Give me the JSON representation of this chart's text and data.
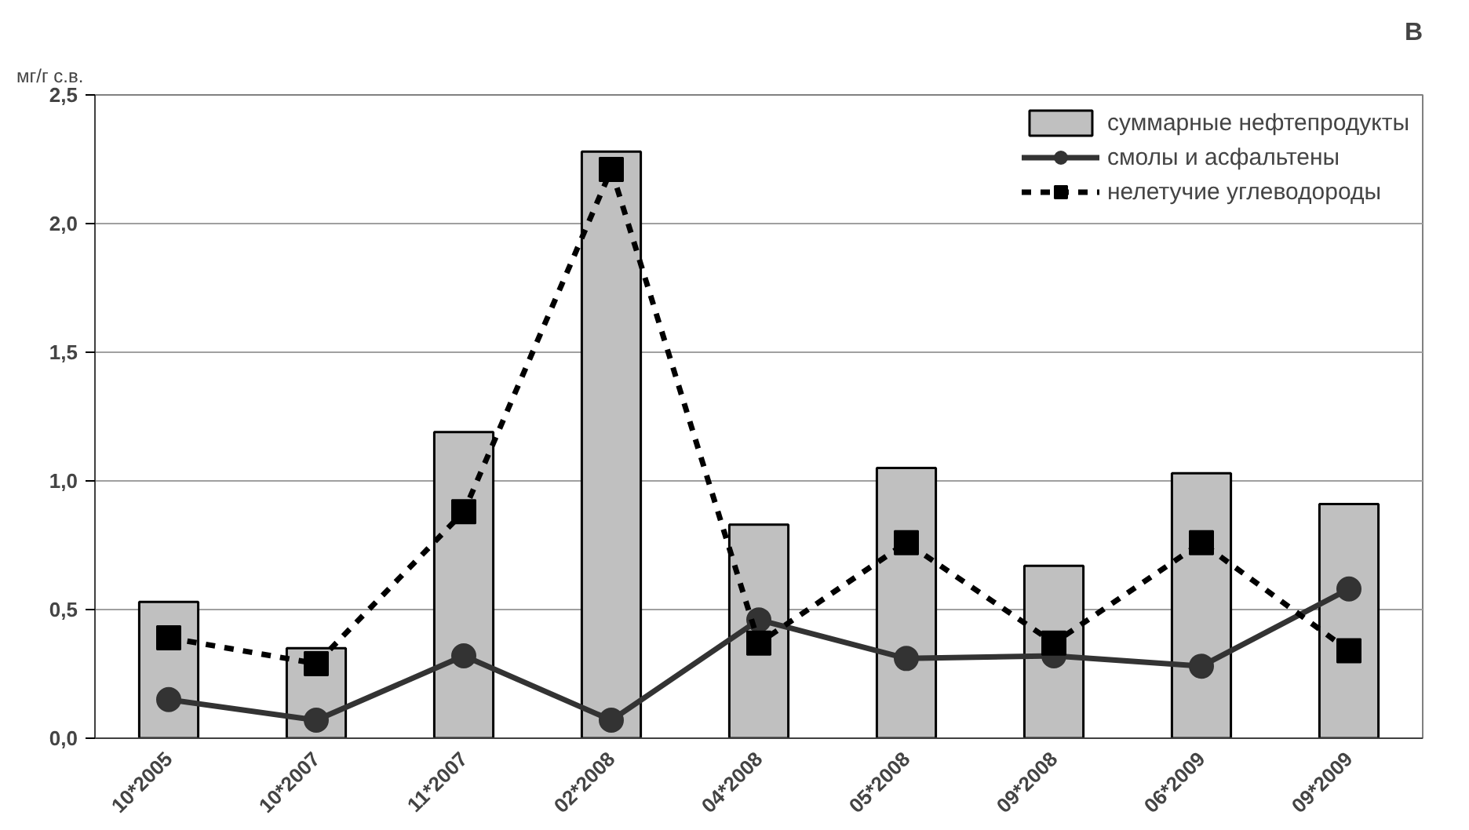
{
  "chart_data": {
    "type": "bar",
    "ylabel": "мг/г с.в.",
    "annotations": [
      "В"
    ],
    "categories": [
      "10*2005",
      "10*2007",
      "11*2007",
      "02*2008",
      "04*2008",
      "05*2008",
      "09*2008",
      "06*2009",
      "09*2009"
    ],
    "series": [
      {
        "name": "суммарные нефтепродукты",
        "color": "#c0c0c0",
        "values": [
          0.53,
          0.35,
          1.19,
          2.28,
          0.83,
          1.05,
          0.67,
          1.03,
          0.91
        ]
      },
      {
        "name": "смолы и асфальтены",
        "type": "line",
        "color": "#333333",
        "marker": "circle",
        "line_style": "solid",
        "values": [
          0.15,
          0.07,
          0.32,
          0.07,
          0.46,
          0.31,
          0.32,
          0.28,
          0.58
        ]
      },
      {
        "name": "нелетучие углеводороды",
        "type": "line",
        "color": "#000000",
        "marker": "square",
        "line_style": "dashed",
        "values": [
          0.39,
          0.29,
          0.88,
          2.21,
          0.37,
          0.76,
          0.37,
          0.76,
          0.34
        ]
      }
    ],
    "ylim": [
      0,
      2.5
    ],
    "yticks": [
      {
        "value": 0,
        "label": "0,0"
      },
      {
        "value": 0.5,
        "label": "0,5"
      },
      {
        "value": 1,
        "label": "1,0"
      },
      {
        "value": 1.5,
        "label": "1,5"
      },
      {
        "value": 2,
        "label": "2,0"
      },
      {
        "value": 2.5,
        "label": "2,5"
      }
    ],
    "grid": "y",
    "legend": "top right"
  }
}
